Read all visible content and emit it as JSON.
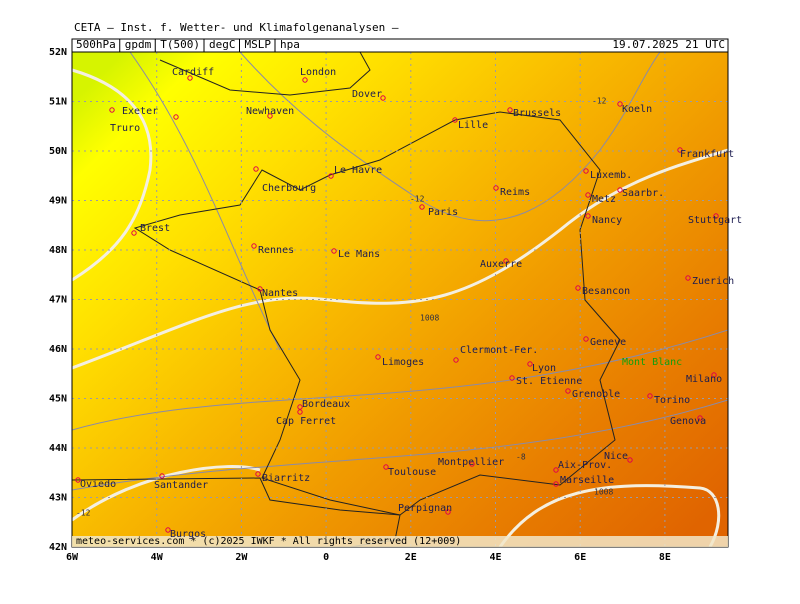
{
  "header": {
    "title": "CETA – Inst. f. Wetter- und Klimafolgenanalysen –",
    "fields": [
      "500hPa",
      "gpdm",
      "T(500)",
      "degC",
      "MSLP",
      "hpa"
    ],
    "valid": "19.07.2025 21 UTC"
  },
  "axes": {
    "lat": [
      "52N",
      "51N",
      "50N",
      "49N",
      "48N",
      "47N",
      "46N",
      "45N",
      "44N",
      "43N",
      "42N"
    ],
    "lon": [
      "6W",
      "4W",
      "2W",
      "0",
      "2E",
      "4E",
      "6E",
      "8E"
    ]
  },
  "cities": [
    "Cardiff",
    "London",
    "Dover",
    "Exeter",
    "Newhaven",
    "Truro",
    "Lille",
    "Brussels",
    "Koeln",
    "Frankfurt",
    "Luxemb.",
    "Saarbr.",
    "Metz",
    "Nancy",
    "Stuttgart",
    "Le Havre",
    "Cherbourg",
    "Reims",
    "Paris",
    "Brest",
    "Rennes",
    "Le Mans",
    "Auxerre",
    "Besancon",
    "Zuerich",
    "Nantes",
    "Geneve",
    "Limoges",
    "Clermont-Fer.",
    "Lyon",
    "St. Etienne",
    "Grenoble",
    "Milano",
    "Torino",
    "Bordeaux",
    "Cap Ferret",
    "Genova",
    "Nice",
    "Montpellier",
    "Toulouse",
    "Aix-Prov.",
    "Marseille",
    "Biarritz",
    "Oviedo",
    "Santander",
    "Perpignan",
    "Burgos",
    "Mont Blanc"
  ],
  "contour_labels": [
    "-12",
    "-12",
    "1008",
    "-8",
    "1008",
    "-12"
  ],
  "footer": "meteo-services.com * (c)2025 IWKF * All rights reserved (12+009)"
}
